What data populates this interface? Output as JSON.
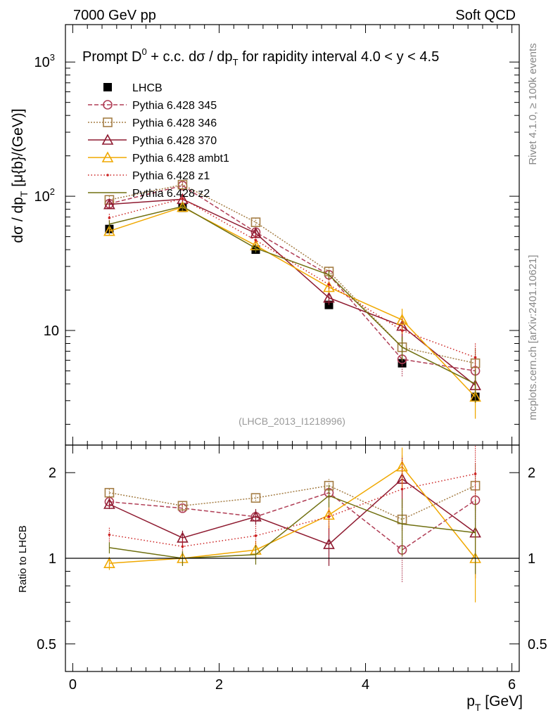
{
  "header": {
    "left": "7000 GeV pp",
    "right": "Soft QCD"
  },
  "side": {
    "rivet": "Rivet 4.1.0, ≥ 100k events",
    "mcplots": "mcplots.cern.ch [arXiv:2401.10621]"
  },
  "chart_data": {
    "type": "line",
    "title": "Prompt D0 + c.c.  dσ / dpT for rapidity interval 4.0 < y < 4.5",
    "title_parts": {
      "a": "Prompt D",
      "sup": "0",
      "b": " + c.c.  dσ / dp",
      "sub": "T",
      "c": " for rapidity interval 4.0 < y < 4.5"
    },
    "ylabel_parts": {
      "a": "dσ / dp",
      "sub": "T",
      "b": " [μ{b}/(GeV)]"
    },
    "xlabel_parts": {
      "a": "p",
      "sub": "T",
      "b": " [GeV]"
    },
    "ratio_ylabel": "Ratio to LHCB",
    "watermark": "(LHCB_2013_I1218996)",
    "xlim": [
      -0.1,
      6.1
    ],
    "ylim": [
      1.4,
      1900
    ],
    "ratio_ylim": [
      0.4,
      2.5
    ],
    "x_ticks": [
      0,
      2,
      4,
      6
    ],
    "y_ticks": [
      {
        "v": 10,
        "label": "10"
      },
      {
        "v": 100,
        "label": "10",
        "sup": "2"
      },
      {
        "v": 1000,
        "label": "10",
        "sup": "3"
      }
    ],
    "ratio_ticks": [
      {
        "v": 0.5,
        "label": "0.5"
      },
      {
        "v": 1,
        "label": "1"
      },
      {
        "v": 2,
        "label": "2"
      }
    ],
    "x": [
      0.5,
      1.5,
      2.5,
      3.5,
      4.5,
      5.5
    ],
    "series": [
      {
        "name": "LHCB",
        "color": "#000000",
        "marker": "filled-square",
        "dash": "none",
        "values": [
          57,
          82,
          40,
          15.5,
          5.7,
          3.2
        ],
        "errors": [
          3,
          4,
          2,
          1,
          0.4,
          0.3
        ]
      },
      {
        "name": "Pythia 6.428 345",
        "color": "#b03e56",
        "marker": "circle",
        "dash": "6,3",
        "values": [
          88,
          120,
          54,
          26,
          6.1,
          5.0
        ],
        "errors": [
          6,
          8,
          4,
          2,
          1.6,
          1.4
        ],
        "ratio": [
          1.58,
          1.5,
          1.4,
          1.7,
          1.07,
          1.6
        ],
        "ratio_err": [
          0.05,
          0.05,
          0.07,
          0.1,
          0.25,
          0.35
        ]
      },
      {
        "name": "Pythia 6.428 346",
        "color": "#a57e46",
        "marker": "square",
        "dash": "2,2",
        "values": [
          94,
          122,
          64,
          27.5,
          7.5,
          5.7
        ],
        "errors": [
          6,
          8,
          5,
          2,
          1.5,
          1.6
        ],
        "ratio": [
          1.7,
          1.53,
          1.63,
          1.8,
          1.37,
          1.8
        ],
        "ratio_err": [
          0.05,
          0.05,
          0.06,
          0.1,
          0.25,
          0.35
        ]
      },
      {
        "name": "Pythia 6.428 370",
        "color": "#8e1a30",
        "marker": "triangle",
        "dash": "none",
        "values": [
          87,
          95,
          53,
          17.5,
          10.8,
          3.9
        ],
        "errors": [
          6,
          7,
          4,
          2,
          2.5,
          1.0
        ],
        "ratio": [
          1.55,
          1.18,
          1.4,
          1.12,
          1.9,
          1.23
        ],
        "ratio_err": [
          0.06,
          0.07,
          0.09,
          0.18,
          0.4,
          0.38
        ]
      },
      {
        "name": "Pythia 6.428 ambt1",
        "color": "#f0a800",
        "marker": "triangle",
        "dash": "none",
        "values": [
          55,
          83,
          43,
          21,
          12.0,
          3.2
        ],
        "errors": [
          4,
          6,
          3,
          2,
          2.5,
          1.0
        ],
        "ratio": [
          0.96,
          1.0,
          1.07,
          1.42,
          2.1,
          1.0
        ],
        "ratio_err": [
          0.05,
          0.06,
          0.08,
          0.15,
          0.35,
          0.3
        ]
      },
      {
        "name": "Pythia 6.428 z1",
        "color": "#cc2222",
        "marker": "dot",
        "dash": "1.5,3",
        "values": [
          69,
          96,
          47,
          22,
          10.0,
          6.3
        ],
        "errors": [
          5,
          7,
          4,
          2,
          2.2,
          1.7
        ],
        "ratio": [
          1.21,
          1.1,
          1.2,
          1.4,
          1.75,
          1.98
        ],
        "ratio_err": [
          0.07,
          0.07,
          0.1,
          0.2,
          0.5,
          0.5
        ]
      },
      {
        "name": "Pythia 6.428 z2",
        "color": "#707010",
        "marker": "none",
        "dash": "none",
        "values": [
          62,
          84,
          41,
          26,
          7.5,
          4.0
        ],
        "errors": [
          4,
          6,
          3,
          2,
          1.5,
          1.1
        ],
        "ratio": [
          1.09,
          1.0,
          1.03,
          1.66,
          1.32,
          1.23
        ],
        "ratio_err": [
          0.05,
          0.06,
          0.08,
          0.15,
          0.3,
          0.35
        ]
      }
    ]
  }
}
